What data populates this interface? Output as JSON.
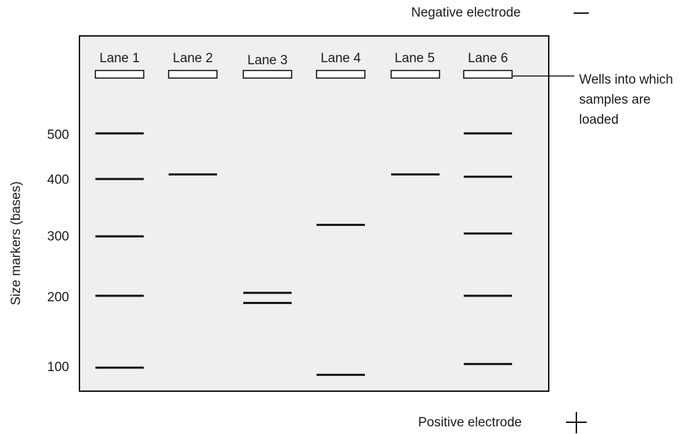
{
  "electrodes": {
    "negative_label": "Negative electrode",
    "negative_symbol": "—",
    "positive_label": "Positive electrode",
    "positive_symbol": "+"
  },
  "callout": {
    "line1": "Wells into which",
    "line2": "samples are",
    "line3": "loaded"
  },
  "lanes": [
    {
      "label": "Lane 1",
      "bands": [
        500,
        400,
        300,
        200,
        100
      ]
    },
    {
      "label": "Lane 2",
      "bands": [
        410
      ]
    },
    {
      "label": "Lane 3",
      "bands": [
        205,
        190
      ]
    },
    {
      "label": "Lane 4",
      "bands": [
        320,
        90
      ]
    },
    {
      "label": "Lane 5",
      "bands": [
        410
      ]
    },
    {
      "label": "Lane 6",
      "bands": [
        500,
        405,
        305,
        200,
        105
      ]
    }
  ],
  "y_axis": {
    "title": "Size  markers (bases)",
    "ticks": [
      "500",
      "400",
      "300",
      "200",
      "100"
    ]
  },
  "colors": {
    "gel_background": "#efefef",
    "band": "#111111"
  }
}
